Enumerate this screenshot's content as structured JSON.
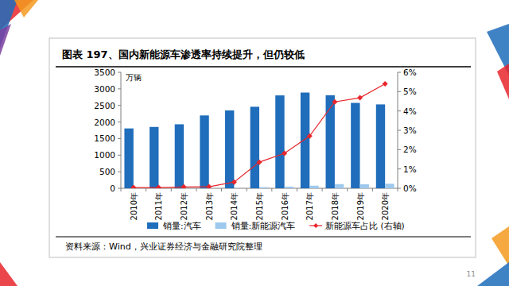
{
  "chart_data": {
    "type": "bar",
    "title": "图表 197、国内新能源车渗透率持续提升，但仍较低",
    "ylabel": "万辆",
    "source": "资料来源：Wind，兴业证券经济与金融研究院整理",
    "categories": [
      "2010年",
      "2011年",
      "2012年",
      "2013年",
      "2014年",
      "2015年",
      "2016年",
      "2017年",
      "2018年",
      "2019年",
      "2020年"
    ],
    "series": [
      {
        "name": "销量:汽车",
        "type": "bar",
        "color": "#1f6dbb",
        "values": [
          1806,
          1851,
          1931,
          2198,
          2349,
          2460,
          2803,
          2888,
          2808,
          2577,
          2531
        ]
      },
      {
        "name": "销量:新能源汽车",
        "type": "bar",
        "color": "#9ec9ef",
        "values": [
          0.7,
          0.8,
          1.3,
          1.8,
          7.5,
          33,
          51,
          78,
          126,
          121,
          137
        ]
      },
      {
        "name": "新能源车占比 (右轴)",
        "type": "line",
        "axis": "y2",
        "color": "#e8262c",
        "marker": "diamond",
        "line_style": "solid",
        "values": [
          0.04,
          0.04,
          0.07,
          0.08,
          0.32,
          1.35,
          1.81,
          2.7,
          4.47,
          4.68,
          5.4
        ]
      }
    ],
    "ylim": [
      0,
      3500
    ],
    "yticks": [
      0,
      500,
      1000,
      1500,
      2000,
      2500,
      3000,
      3500
    ],
    "y2lim": [
      0,
      6
    ],
    "y2ticks": [
      {
        "value": 0,
        "label": "0%"
      },
      {
        "value": 1,
        "label": "1%"
      },
      {
        "value": 2,
        "label": "2%"
      },
      {
        "value": 3,
        "label": "3%"
      },
      {
        "value": 4,
        "label": "4%"
      },
      {
        "value": 5,
        "label": "5%"
      },
      {
        "value": 6,
        "label": "6%"
      }
    ],
    "grid": false,
    "legend": "bottom"
  },
  "slide": {
    "page_number": "11"
  }
}
